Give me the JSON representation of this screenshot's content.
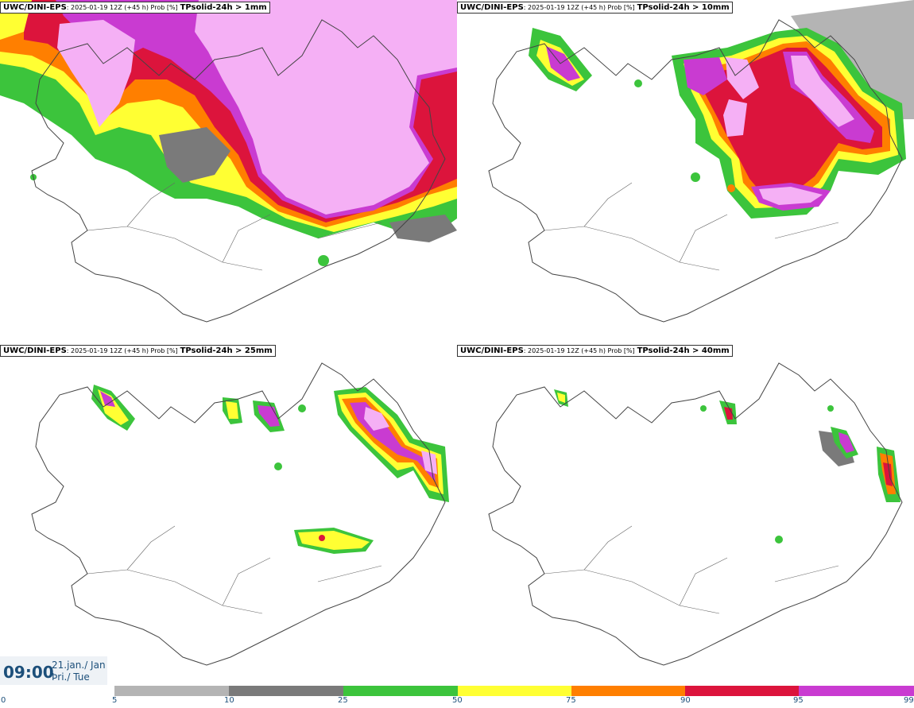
{
  "panels": [
    {
      "model": "UWC/DINI-EPS",
      "meta": ": 2025-01-19 12Z (+45 h) Prob [%]",
      "param": "TPsolid-24h > 1mm"
    },
    {
      "model": "UWC/DINI-EPS",
      "meta": ": 2025-01-19 12Z (+45 h) Prob [%]",
      "param": "TPsolid-24h > 10mm"
    },
    {
      "model": "UWC/DINI-EPS",
      "meta": ": 2025-01-19 12Z (+45 h) Prob [%]",
      "param": "TPsolid-24h > 25mm"
    },
    {
      "model": "UWC/DINI-EPS",
      "meta": ": 2025-01-19 12Z (+45 h) Prob [%]",
      "param": "TPsolid-24h > 40mm"
    }
  ],
  "valid_time": {
    "time": "09:00",
    "date_line1": "21.jan./ Jan",
    "date_line2": "Þri./ Tue"
  },
  "colorbar": {
    "ticks": [
      "0",
      "5",
      "10",
      "25",
      "50",
      "75",
      "90",
      "95",
      "99"
    ],
    "colors": [
      "#b4b4b4",
      "#7a7a7a",
      "#3cc43c",
      "#ffff33",
      "#ff7f00",
      "#dc143c",
      "#c93bd1",
      "#f5b0f5"
    ]
  }
}
